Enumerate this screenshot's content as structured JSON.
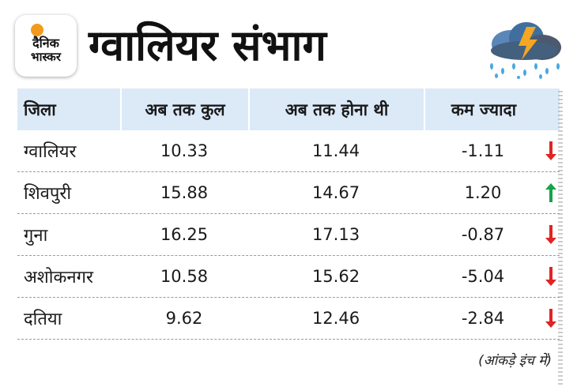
{
  "brand": {
    "line1": "दैनिक",
    "line2": "भास्कर"
  },
  "title": "ग्वालियर संभाग",
  "weather_icon": "rain-cloud-lightning-icon",
  "table": {
    "headers": [
      "जिला",
      "अब तक कुल",
      "अब तक होना थी",
      "कम ज्यादा"
    ],
    "rows": [
      {
        "district": "ग्वालियर",
        "total": "10.33",
        "expected": "11.44",
        "diff": "-1.11",
        "trend": "down"
      },
      {
        "district": "शिवपुरी",
        "total": "15.88",
        "expected": "14.67",
        "diff": "1.20",
        "trend": "up"
      },
      {
        "district": "गुना",
        "total": "16.25",
        "expected": "17.13",
        "diff": "-0.87",
        "trend": "down"
      },
      {
        "district": "अशोकनगर",
        "total": "10.58",
        "expected": "15.62",
        "diff": "-5.04",
        "trend": "down"
      },
      {
        "district": "दतिया",
        "total": "9.62",
        "expected": "12.46",
        "diff": "-2.84",
        "trend": "down"
      }
    ]
  },
  "note": "(आंकड़े इंच में)",
  "colors": {
    "header_bg": "#dceaf8",
    "down": "#e02424",
    "up": "#17a34a",
    "logo_sun": "#f39a1e"
  }
}
